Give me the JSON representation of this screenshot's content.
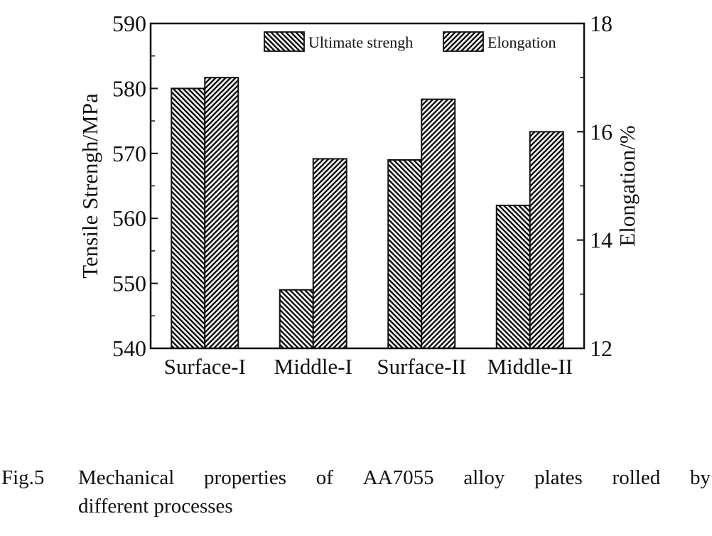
{
  "chart_data": {
    "type": "bar",
    "categories": [
      "Surface-I",
      "Middle-I",
      "Surface-II",
      "Middle-II"
    ],
    "series": [
      {
        "name": "Ultimate strengh",
        "axis": "left",
        "values": [
          580,
          549,
          569,
          562
        ],
        "pattern": "backslash-hatch"
      },
      {
        "name": "Elongation",
        "axis": "right",
        "values": [
          17.0,
          15.5,
          16.6,
          16.0
        ],
        "pattern": "slash-hatch"
      }
    ],
    "ylabel": "Tensile Strengh/MPa",
    "y2label": "Elongation/%",
    "ylim": [
      540,
      590
    ],
    "y2lim": [
      12,
      18
    ],
    "yticks": [
      "540",
      "550",
      "560",
      "570",
      "580",
      "590"
    ],
    "y2ticks": [
      "12",
      "14",
      "16",
      "18"
    ],
    "legend_position": "top-right",
    "grid": false
  },
  "caption": {
    "number": "Fig.5",
    "line1": [
      "Mechanical",
      "properties",
      "of",
      "AA7055",
      "alloy",
      "plates",
      "rolled",
      "by"
    ],
    "line2": "different processes"
  },
  "colors": {
    "ink": "#111111",
    "background": "#ffffff"
  }
}
